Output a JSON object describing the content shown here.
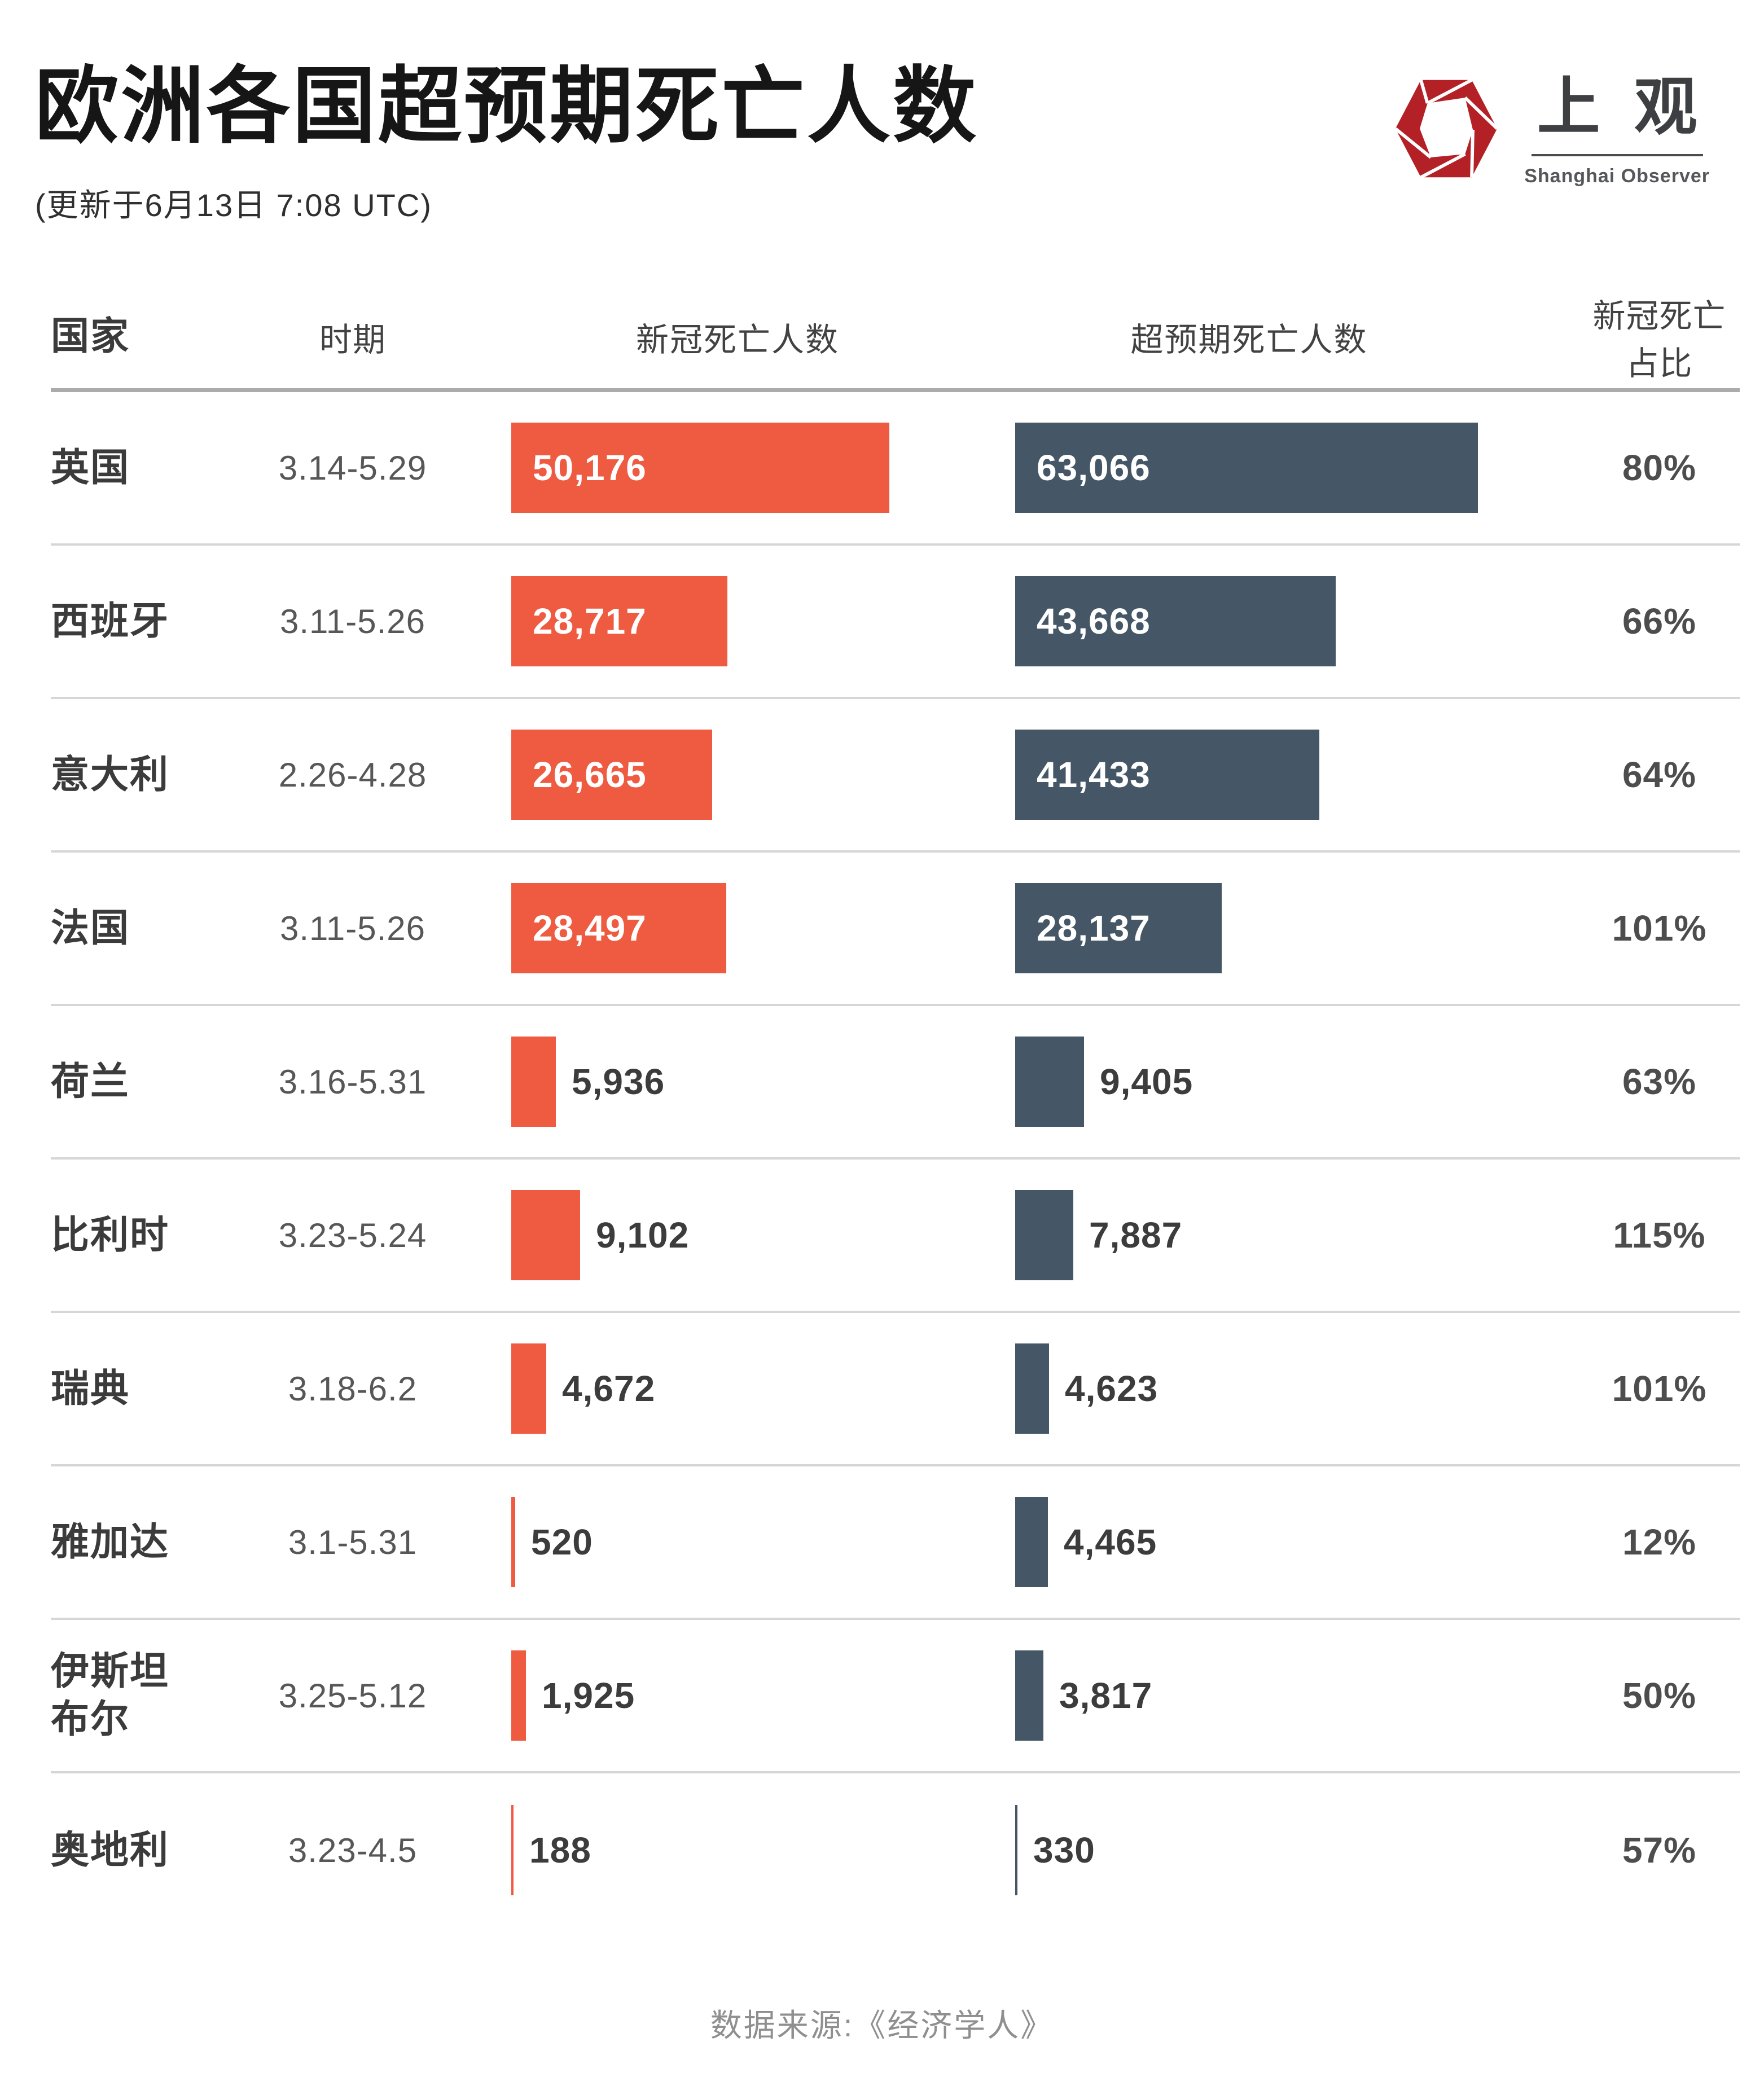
{
  "page": {
    "title": "欧洲各国超预期死亡人数",
    "subtitle": "(更新于6月13日 7:08 UTC)"
  },
  "logo": {
    "cn": "上观",
    "en": "Shanghai Observer",
    "accent": "#b32127",
    "text_color": "#3d3f42"
  },
  "table": {
    "columns": {
      "country": "国家",
      "period": "时期",
      "covid": "新冠死亡人数",
      "excess": "超预期死亡人数",
      "ratio": "新冠死亡占比"
    },
    "rows": [
      {
        "country": "英国",
        "period": "3.14-5.29",
        "covid_label": "50,176",
        "covid_value": 50176,
        "excess_label": "63,066",
        "excess_value": 63066,
        "ratio": "80%"
      },
      {
        "country": "西班牙",
        "period": "3.11-5.26",
        "covid_label": "28,717",
        "covid_value": 28717,
        "excess_label": "43,668",
        "excess_value": 43668,
        "ratio": "66%"
      },
      {
        "country": "意大利",
        "period": "2.26-4.28",
        "covid_label": "26,665",
        "covid_value": 26665,
        "excess_label": "41,433",
        "excess_value": 41433,
        "ratio": "64%"
      },
      {
        "country": "法国",
        "period": "3.11-5.26",
        "covid_label": "28,497",
        "covid_value": 28497,
        "excess_label": "28,137",
        "excess_value": 28137,
        "ratio": "101%"
      },
      {
        "country": "荷兰",
        "period": "3.16-5.31",
        "covid_label": "5,936",
        "covid_value": 5936,
        "excess_label": "9,405",
        "excess_value": 9405,
        "ratio": "63%"
      },
      {
        "country": "比利时",
        "period": "3.23-5.24",
        "covid_label": "9,102",
        "covid_value": 9102,
        "excess_label": "7,887",
        "excess_value": 7887,
        "ratio": "115%"
      },
      {
        "country": "瑞典",
        "period": "3.18-6.2",
        "covid_label": "4,672",
        "covid_value": 4672,
        "excess_label": "4,623",
        "excess_value": 4623,
        "ratio": "101%"
      },
      {
        "country": "雅加达",
        "period": "3.1-5.31",
        "covid_label": "520",
        "covid_value": 520,
        "excess_label": "4,465",
        "excess_value": 4465,
        "ratio": "12%"
      },
      {
        "country": "伊斯坦\n布尔",
        "period": "3.25-5.12",
        "covid_label": "1,925",
        "covid_value": 1925,
        "excess_label": "3,817",
        "excess_value": 3817,
        "ratio": "50%"
      },
      {
        "country": "奥地利",
        "period": "3.23-4.5",
        "covid_label": "188",
        "covid_value": 188,
        "excess_label": "330",
        "excess_value": 330,
        "ratio": "57%"
      }
    ]
  },
  "colors": {
    "covid_bar": "#ee5b41",
    "excess_bar": "#455766",
    "separator": "#d6d6d6",
    "header_rule": "#ababab"
  },
  "footer": {
    "source": "数据来源:《经济学人》"
  },
  "chart_data": {
    "type": "bar",
    "orientation": "horizontal",
    "title": "欧洲各国超预期死亡人数",
    "subtitle": "(更新于6月13日 7:08 UTC)",
    "categories": [
      "英国",
      "西班牙",
      "意大利",
      "法国",
      "荷兰",
      "比利时",
      "瑞典",
      "雅加达",
      "伊斯坦布尔",
      "奥地利"
    ],
    "periods": [
      "3.14-5.29",
      "3.11-5.26",
      "2.26-4.28",
      "3.11-5.26",
      "3.16-5.31",
      "3.23-5.24",
      "3.18-6.2",
      "3.1-5.31",
      "3.25-5.12",
      "3.23-4.5"
    ],
    "series": [
      {
        "name": "新冠死亡人数",
        "color": "#ee5b41",
        "values": [
          50176,
          28717,
          26665,
          28497,
          5936,
          9102,
          4672,
          520,
          1925,
          188
        ]
      },
      {
        "name": "超预期死亡人数",
        "color": "#455766",
        "values": [
          63066,
          43668,
          41433,
          28137,
          9405,
          7887,
          4623,
          4465,
          3817,
          330
        ]
      }
    ],
    "ratio_column": {
      "name": "新冠死亡占比",
      "values": [
        "80%",
        "66%",
        "64%",
        "101%",
        "63%",
        "115%",
        "101%",
        "12%",
        "50%",
        "57%"
      ]
    },
    "xlim": [
      0,
      63066
    ],
    "grid": false,
    "legend_position": "none",
    "source": "数据来源:《经济学人》"
  }
}
